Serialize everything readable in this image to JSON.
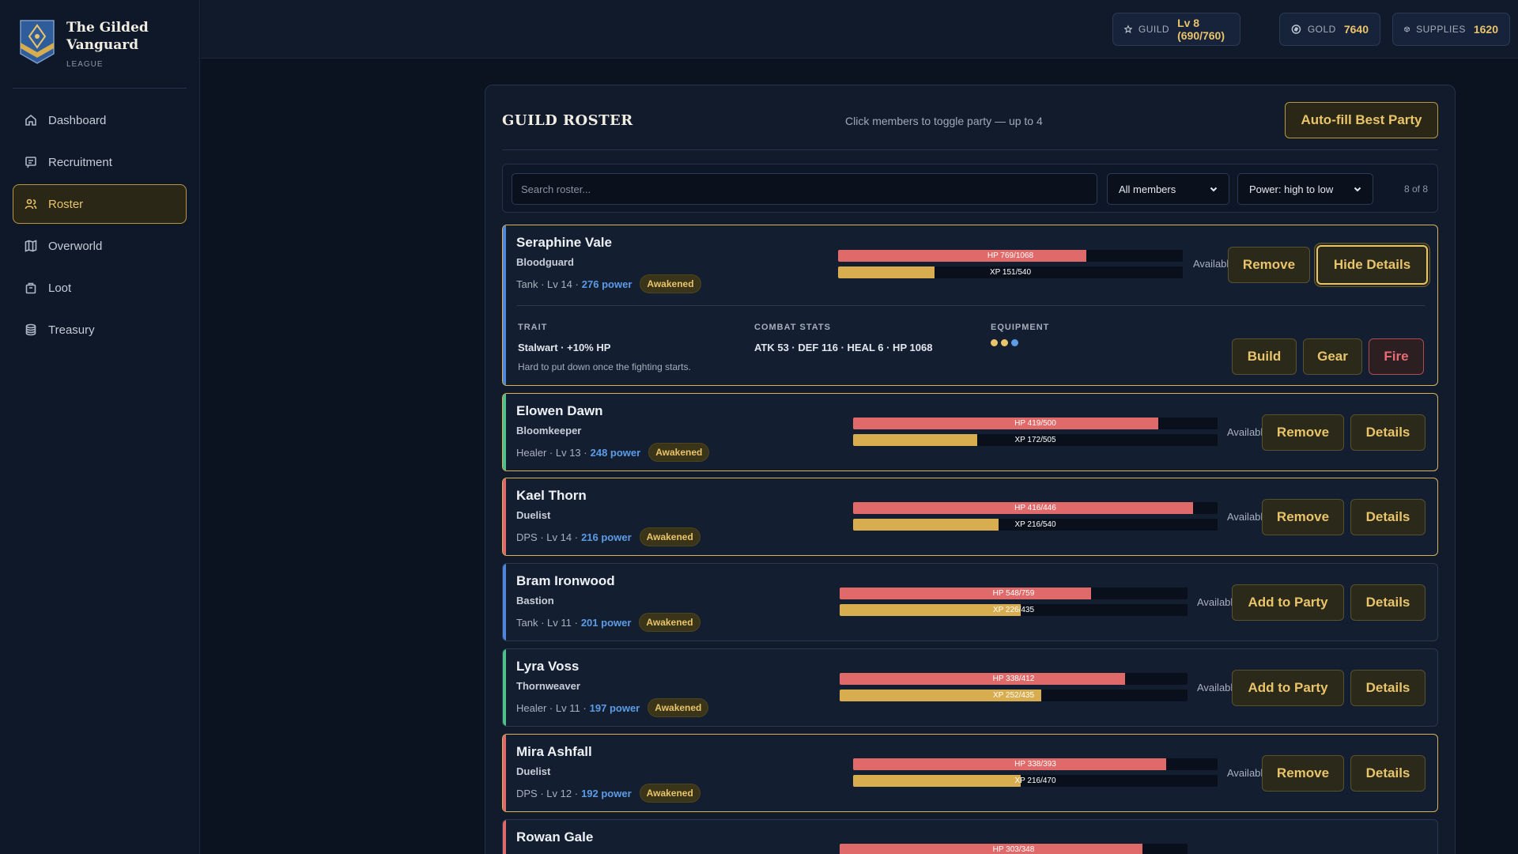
{
  "brand": {
    "title": "The Gilded Vanguard",
    "subtitle": "LEAGUE"
  },
  "nav": [
    {
      "label": "Dashboard",
      "icon": "home-icon",
      "active": false
    },
    {
      "label": "Recruitment",
      "icon": "recruit-icon",
      "active": false
    },
    {
      "label": "Roster",
      "icon": "users-icon",
      "active": true
    },
    {
      "label": "Overworld",
      "icon": "map-icon",
      "active": false
    },
    {
      "label": "Loot",
      "icon": "bag-icon",
      "active": false
    },
    {
      "label": "Treasury",
      "icon": "coins-icon",
      "active": false
    }
  ],
  "topbar": {
    "guild_label": "GUILD",
    "guild_value": "Lv 8 (690/760)",
    "gold_label": "GOLD",
    "gold_value": "7640",
    "supplies_label": "SUPPLIES",
    "supplies_value": "1620"
  },
  "roster": {
    "title": "GUILD ROSTER",
    "hint": "Click members to toggle party — up to 4",
    "autofill_label": "Auto-fill Best Party",
    "search_placeholder": "Search roster...",
    "filter_selected": "All members",
    "sort_selected": "Power: high to low",
    "count_text": "8 of 8"
  },
  "colors": {
    "accent": "#e9c46a",
    "tank": "#4f86d9",
    "healer": "#4fc08a",
    "dps": "#e06a6a"
  },
  "members": [
    {
      "name": "Seraphine Vale",
      "class": "Bloodguard",
      "role": "Tank",
      "level": "Lv 14",
      "power": "276 power",
      "badge": "Awakened",
      "hp_text": "HP 769/1068",
      "hp_frac": 0.72,
      "xp_text": "XP 151/540",
      "xp_frac": 0.28,
      "status": "Available",
      "primary_action": "Remove",
      "details_action": "Hide Details",
      "in_party": true,
      "details": {
        "trait_label": "TRAIT",
        "trait_name": "Stalwart · +10% HP",
        "trait_desc": "Hard to put down once the fighting starts.",
        "stats_label": "COMBAT STATS",
        "stats": "ATK 53 · DEF 116 · HEAL 6 · HP 1068",
        "equip_label": "EQUIPMENT",
        "equipment_dots": [
          "#e9c46a",
          "#e9c46a",
          "#5c9ce6"
        ],
        "build_label": "Build",
        "gear_label": "Gear",
        "fire_label": "Fire"
      }
    },
    {
      "name": "Elowen Dawn",
      "class": "Bloomkeeper",
      "role": "Healer",
      "level": "Lv 13",
      "power": "248 power",
      "badge": "Awakened",
      "hp_text": "HP 419/500",
      "hp_frac": 0.838,
      "xp_text": "XP 172/505",
      "xp_frac": 0.341,
      "status": "Available",
      "primary_action": "Remove",
      "details_action": "Details",
      "in_party": true
    },
    {
      "name": "Kael Thorn",
      "class": "Duelist",
      "role": "DPS",
      "level": "Lv 14",
      "power": "216 power",
      "badge": "Awakened",
      "hp_text": "HP 416/446",
      "hp_frac": 0.933,
      "xp_text": "XP 216/540",
      "xp_frac": 0.4,
      "status": "Available",
      "primary_action": "Remove",
      "details_action": "Details",
      "in_party": true
    },
    {
      "name": "Bram Ironwood",
      "class": "Bastion",
      "role": "Tank",
      "level": "Lv 11",
      "power": "201 power",
      "badge": "Awakened",
      "hp_text": "HP 548/759",
      "hp_frac": 0.722,
      "xp_text": "XP 226/435",
      "xp_frac": 0.52,
      "status": "Available",
      "primary_action": "Add to Party",
      "details_action": "Details",
      "in_party": false
    },
    {
      "name": "Lyra Voss",
      "class": "Thornweaver",
      "role": "Healer",
      "level": "Lv 11",
      "power": "197 power",
      "badge": "Awakened",
      "hp_text": "HP 338/412",
      "hp_frac": 0.82,
      "xp_text": "XP 252/435",
      "xp_frac": 0.579,
      "status": "Available",
      "primary_action": "Add to Party",
      "details_action": "Details",
      "in_party": false
    },
    {
      "name": "Mira Ashfall",
      "class": "Duelist",
      "role": "DPS",
      "level": "Lv 12",
      "power": "192 power",
      "badge": "Awakened",
      "hp_text": "HP 338/393",
      "hp_frac": 0.86,
      "xp_text": "XP 216/470",
      "xp_frac": 0.46,
      "status": "Available",
      "primary_action": "Remove",
      "details_action": "Details",
      "in_party": true
    },
    {
      "name": "Rowan Gale",
      "hp_text": "HP 303/348",
      "hp_frac": 0.87
    }
  ]
}
